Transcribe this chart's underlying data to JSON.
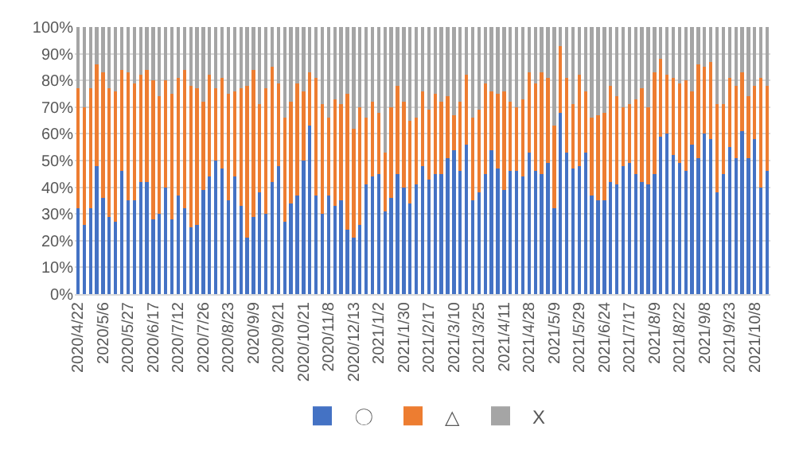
{
  "chart_data": {
    "type": "bar",
    "stacked": true,
    "categories": [
      "2020/4/22",
      null,
      null,
      null,
      "2020/5/6",
      null,
      null,
      null,
      "2020/5/27",
      null,
      null,
      null,
      "2020/6/17",
      null,
      null,
      null,
      "2020/7/12",
      null,
      null,
      null,
      "2020/7/26",
      null,
      null,
      null,
      "2020/8/23",
      null,
      null,
      null,
      "2020/9/9",
      null,
      null,
      null,
      "2020/9/21",
      null,
      null,
      null,
      "2020/10/21",
      null,
      null,
      null,
      "2020/11/8",
      null,
      null,
      null,
      "2020/12/13",
      null,
      null,
      null,
      "2021/1/2",
      null,
      null,
      null,
      "2021/1/30",
      null,
      null,
      null,
      "2021/2/17",
      null,
      null,
      null,
      "2021/3/10",
      null,
      null,
      null,
      "2021/3/25",
      null,
      null,
      null,
      "2021/4/11",
      null,
      null,
      null,
      "2021/4/28",
      null,
      null,
      null,
      "2021/5/9",
      null,
      null,
      null,
      "2021/5/29",
      null,
      null,
      null,
      "2021/6/24",
      null,
      null,
      null,
      "2021/7/17",
      null,
      null,
      null,
      "2021/8/9",
      null,
      null,
      null,
      "2021/8/22",
      null,
      null,
      null,
      "2021/9/8",
      null,
      null,
      null,
      "2021/9/23",
      null,
      null,
      null,
      "2021/10/8",
      null,
      null
    ],
    "series": [
      {
        "name": "〇",
        "color": "#4472c4",
        "values": [
          32,
          26,
          32,
          48,
          36,
          29,
          27,
          46,
          35,
          35,
          42,
          42,
          28,
          30,
          40,
          28,
          37,
          32,
          25,
          26,
          39,
          44,
          50,
          47,
          35,
          44,
          33,
          21,
          29,
          38,
          30,
          42,
          48,
          27,
          34,
          37,
          50,
          63,
          37,
          30,
          37,
          33,
          35,
          24,
          21,
          26,
          41,
          44,
          45,
          31,
          36,
          45,
          40,
          34,
          41,
          48,
          43,
          45,
          45,
          51,
          54,
          46,
          56,
          35,
          38,
          45,
          54,
          47,
          39,
          46,
          46,
          44,
          53,
          46,
          45,
          49,
          32,
          68,
          53,
          47,
          48,
          53,
          37,
          35,
          35,
          42,
          41,
          48,
          49,
          45,
          42,
          41,
          45,
          59,
          60,
          52,
          49,
          46,
          56,
          51,
          60,
          58,
          38,
          45,
          55,
          51,
          61,
          51,
          58,
          40,
          46
        ]
      },
      {
        "name": "△",
        "color": "#ed7d31",
        "values": [
          45,
          44,
          45,
          38,
          47,
          48,
          49,
          38,
          48,
          44,
          40,
          42,
          52,
          44,
          40,
          47,
          44,
          52,
          53,
          51,
          33,
          38,
          27,
          34,
          40,
          32,
          44,
          57,
          55,
          33,
          47,
          43,
          31,
          39,
          38,
          42,
          26,
          20,
          44,
          41,
          29,
          40,
          36,
          51,
          41,
          44,
          25,
          28,
          23,
          22,
          34,
          33,
          32,
          31,
          25,
          28,
          26,
          30,
          27,
          23,
          13,
          26,
          26,
          31,
          31,
          34,
          22,
          28,
          37,
          26,
          24,
          29,
          30,
          33,
          38,
          32,
          31,
          25,
          28,
          24,
          34,
          23,
          29,
          32,
          33,
          36,
          33,
          22,
          22,
          28,
          35,
          29,
          38,
          29,
          22,
          29,
          30,
          34,
          20,
          35,
          25,
          29,
          33,
          26,
          26,
          27,
          22,
          23,
          20,
          41,
          32
        ]
      },
      {
        "name": "X",
        "color": "#a5a5a5",
        "values": [
          23,
          30,
          23,
          14,
          17,
          23,
          24,
          16,
          17,
          21,
          18,
          16,
          20,
          26,
          20,
          25,
          19,
          16,
          22,
          23,
          28,
          18,
          23,
          19,
          25,
          24,
          23,
          22,
          16,
          29,
          23,
          15,
          21,
          34,
          28,
          21,
          24,
          17,
          19,
          29,
          34,
          27,
          29,
          25,
          38,
          30,
          34,
          28,
          32,
          47,
          30,
          22,
          28,
          35,
          34,
          24,
          31,
          25,
          28,
          26,
          33,
          28,
          18,
          34,
          31,
          21,
          24,
          25,
          24,
          28,
          30,
          27,
          17,
          21,
          17,
          19,
          37,
          7,
          19,
          29,
          18,
          24,
          34,
          33,
          32,
          22,
          26,
          30,
          29,
          27,
          23,
          30,
          17,
          12,
          18,
          19,
          21,
          20,
          24,
          14,
          15,
          13,
          29,
          29,
          19,
          22,
          17,
          26,
          22,
          19,
          22
        ]
      }
    ],
    "ylim": [
      0,
      100
    ],
    "yticks": [
      {
        "value": 0,
        "label": "0%"
      },
      {
        "value": 10,
        "label": "10%"
      },
      {
        "value": 20,
        "label": "20%"
      },
      {
        "value": 30,
        "label": "30%"
      },
      {
        "value": 40,
        "label": "40%"
      },
      {
        "value": 50,
        "label": "50%"
      },
      {
        "value": 60,
        "label": "60%"
      },
      {
        "value": 70,
        "label": "70%"
      },
      {
        "value": 80,
        "label": "80%"
      },
      {
        "value": 90,
        "label": "90%"
      },
      {
        "value": 100,
        "label": "100%"
      }
    ],
    "grid": "y",
    "legend": "bottom"
  }
}
